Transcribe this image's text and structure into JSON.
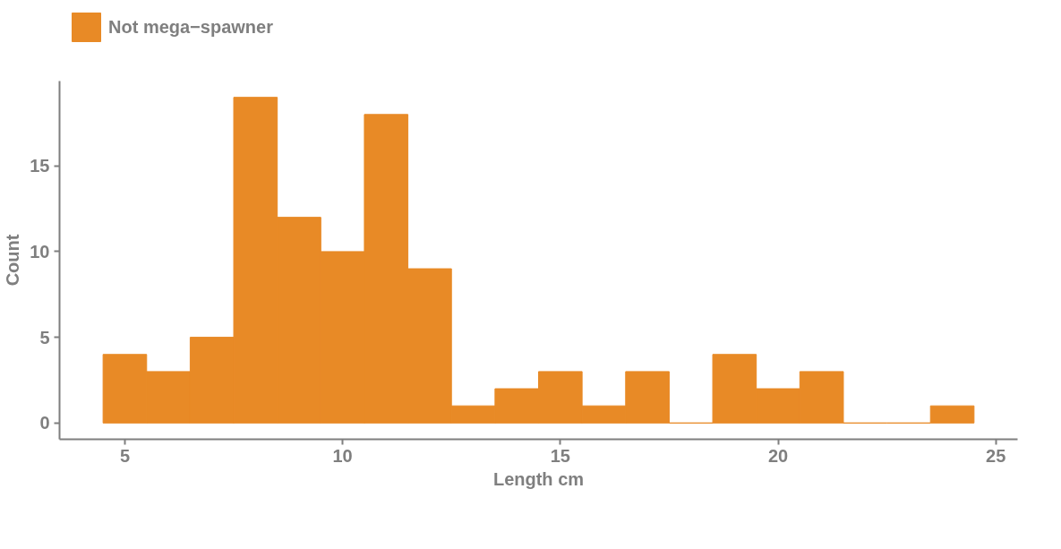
{
  "chart_data": {
    "type": "histogram",
    "xlabel": "Length cm",
    "ylabel": "Count",
    "bins": [
      4.5,
      5.5,
      6.5,
      7.5,
      8.5,
      9.5,
      10.5,
      11.5,
      12.5,
      13.5,
      14.5,
      15.5,
      16.5,
      17.5,
      18.5,
      19.5,
      20.5,
      21.5,
      22.5,
      23.5,
      24.5
    ],
    "series": [
      {
        "name": "Not mega−spawner",
        "color": "#e88a26",
        "values": [
          4,
          3,
          5,
          19,
          12,
          10,
          18,
          9,
          1,
          2,
          3,
          1,
          3,
          0,
          4,
          2,
          3,
          0,
          0,
          1
        ]
      }
    ],
    "xlim": [
      3.5,
      25.5
    ],
    "ylim": [
      -0.95,
      19.95
    ],
    "xticks": [
      5,
      10,
      15,
      20,
      25
    ],
    "yticks": [
      0,
      5,
      10,
      15
    ],
    "grid": false,
    "legend": "top left"
  }
}
